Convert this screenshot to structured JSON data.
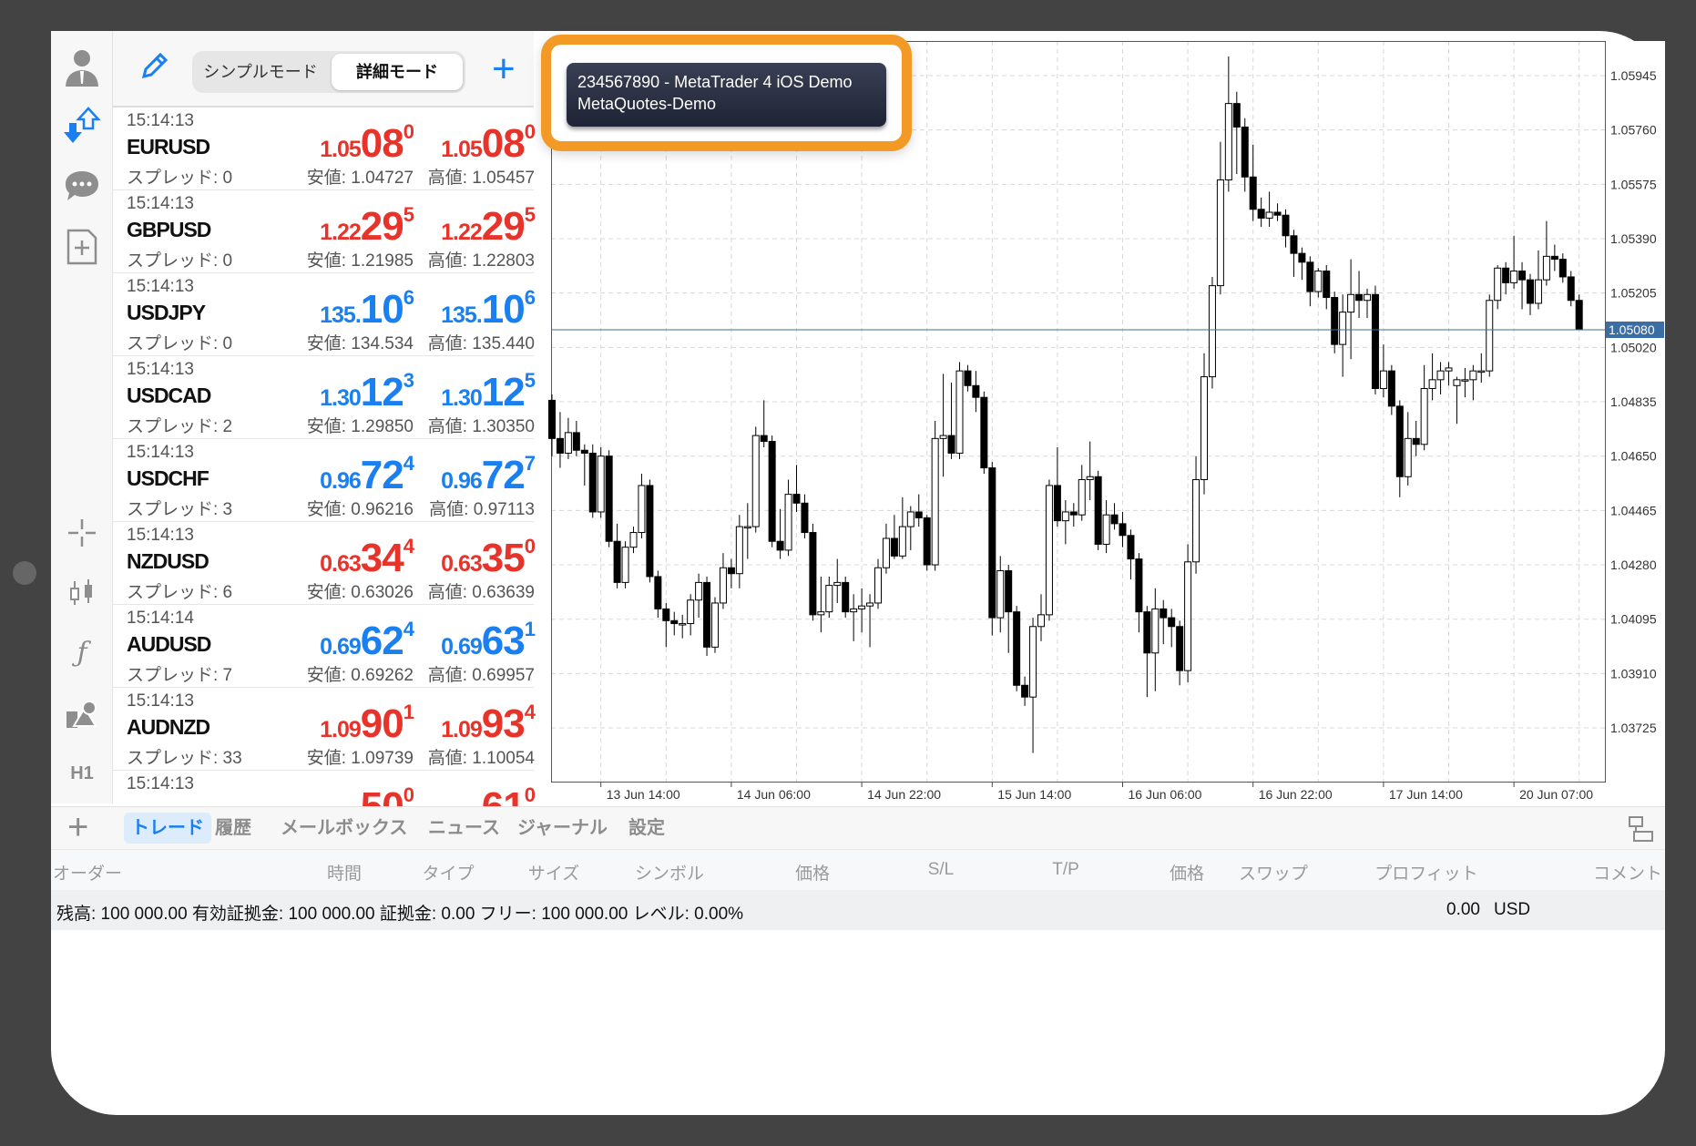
{
  "header": {
    "simple_mode": "シンプルモード",
    "detail_mode": "詳細モード",
    "active_mode": "詳細モード"
  },
  "toolbar": {
    "icons": [
      "person-icon",
      "trade-arrows-icon",
      "chat-icon",
      "new-document-icon",
      "crosshair-icon",
      "candlestick-icon",
      "function-icon",
      "objects-icon"
    ],
    "timeframe": "H1"
  },
  "colors": {
    "bid_down": "#e8332a",
    "bid_up": "#1a7ff0",
    "accent": "#1a7ff0",
    "highlight": "#f29a25",
    "price_line": "#3b6ea5"
  },
  "quotes": [
    {
      "time": "15:14:13",
      "symbol": "EURUSD",
      "spread": "スプレッド: 0",
      "dir": "red",
      "bid": {
        "small": "1.05",
        "big": "08",
        "sup": "0"
      },
      "ask": {
        "small": "1.05",
        "big": "08",
        "sup": "0"
      },
      "low": "安値: 1.04727",
      "high": "高値: 1.05457"
    },
    {
      "time": "15:14:13",
      "symbol": "GBPUSD",
      "spread": "スプレッド: 0",
      "dir": "red",
      "bid": {
        "small": "1.22",
        "big": "29",
        "sup": "5"
      },
      "ask": {
        "small": "1.22",
        "big": "29",
        "sup": "5"
      },
      "low": "安値: 1.21985",
      "high": "高値: 1.22803"
    },
    {
      "time": "15:14:13",
      "symbol": "USDJPY",
      "spread": "スプレッド: 0",
      "dir": "blue",
      "bid": {
        "small": "135.",
        "big": "10",
        "sup": "6"
      },
      "ask": {
        "small": "135.",
        "big": "10",
        "sup": "6"
      },
      "low": "安値: 134.534",
      "high": "高値: 135.440"
    },
    {
      "time": "15:14:13",
      "symbol": "USDCAD",
      "spread": "スプレッド: 2",
      "dir": "blue",
      "bid": {
        "small": "1.30",
        "big": "12",
        "sup": "3"
      },
      "ask": {
        "small": "1.30",
        "big": "12",
        "sup": "5"
      },
      "low": "安値: 1.29850",
      "high": "高値: 1.30350"
    },
    {
      "time": "15:14:13",
      "symbol": "USDCHF",
      "spread": "スプレッド: 3",
      "dir": "blue",
      "bid": {
        "small": "0.96",
        "big": "72",
        "sup": "4"
      },
      "ask": {
        "small": "0.96",
        "big": "72",
        "sup": "7"
      },
      "low": "安値: 0.96216",
      "high": "高値: 0.97113"
    },
    {
      "time": "15:14:13",
      "symbol": "NZDUSD",
      "spread": "スプレッド: 6",
      "dir": "red",
      "bid": {
        "small": "0.63",
        "big": "34",
        "sup": "4"
      },
      "ask": {
        "small": "0.63",
        "big": "35",
        "sup": "0"
      },
      "low": "安値: 0.63026",
      "high": "高値: 0.63639"
    },
    {
      "time": "15:14:14",
      "symbol": "AUDUSD",
      "spread": "スプレッド: 7",
      "dir": "blue",
      "bid": {
        "small": "0.69",
        "big": "62",
        "sup": "4"
      },
      "ask": {
        "small": "0.69",
        "big": "63",
        "sup": "1"
      },
      "low": "安値: 0.69262",
      "high": "高値: 0.69957"
    },
    {
      "time": "15:14:13",
      "symbol": "AUDNZD",
      "spread": "スプレッド: 33",
      "dir": "red",
      "bid": {
        "small": "1.09",
        "big": "90",
        "sup": "1"
      },
      "ask": {
        "small": "1.09",
        "big": "93",
        "sup": "4"
      },
      "low": "安値: 1.09739",
      "high": "高値: 1.10054"
    },
    {
      "time": "15:14:13",
      "symbol": "",
      "spread": "",
      "dir": "red",
      "bid": {
        "small": "",
        "big": "50",
        "sup": "0"
      },
      "ask": {
        "small": "",
        "big": "61",
        "sup": "0"
      },
      "low": "",
      "high": ""
    }
  ],
  "account_tooltip": {
    "line1": "234567890 - MetaTrader 4 iOS Demo",
    "line2": "MetaQuotes-Demo"
  },
  "chart_data": {
    "type": "candlestick",
    "symbol_price_now": 1.0508,
    "current_price_label": "1.05080",
    "ylim": [
      1.0365,
      1.0605
    ],
    "y_ticks": [
      "1.05945",
      "1.05760",
      "1.05575",
      "1.05390",
      "1.05205",
      "1.05020",
      "1.04835",
      "1.04650",
      "1.04465",
      "1.04280",
      "1.04095",
      "1.03910",
      "1.03725"
    ],
    "x_ticks": [
      "13 Jun 14:00",
      "14 Jun 06:00",
      "14 Jun 22:00",
      "15 Jun 14:00",
      "16 Jun 06:00",
      "16 Jun 22:00",
      "17 Jun 14:00",
      "20 Jun 07:00"
    ],
    "grid": true,
    "ohlc": [
      [
        1.0484,
        1.0486,
        1.0465,
        1.0471
      ],
      [
        1.0471,
        1.048,
        1.0461,
        1.0466
      ],
      [
        1.0466,
        1.0478,
        1.0464,
        1.0473
      ],
      [
        1.0473,
        1.0477,
        1.0465,
        1.0467
      ],
      [
        1.0467,
        1.0469,
        1.0455,
        1.0466
      ],
      [
        1.0466,
        1.0469,
        1.0444,
        1.0446
      ],
      [
        1.0446,
        1.0468,
        1.0444,
        1.0465
      ],
      [
        1.0465,
        1.0467,
        1.0434,
        1.0436
      ],
      [
        1.0436,
        1.0442,
        1.042,
        1.0422
      ],
      [
        1.0422,
        1.0436,
        1.042,
        1.0434
      ],
      [
        1.0434,
        1.0441,
        1.0432,
        1.0439
      ],
      [
        1.0439,
        1.0459,
        1.0437,
        1.0455
      ],
      [
        1.0455,
        1.0457,
        1.0422,
        1.0424
      ],
      [
        1.0424,
        1.0426,
        1.041,
        1.0413
      ],
      [
        1.0413,
        1.0415,
        1.04,
        1.0409
      ],
      [
        1.0409,
        1.0412,
        1.0404,
        1.0408
      ],
      [
        1.0408,
        1.0411,
        1.0403,
        1.0408
      ],
      [
        1.0408,
        1.0418,
        1.0404,
        1.0416
      ],
      [
        1.0416,
        1.0425,
        1.041,
        1.0422
      ],
      [
        1.0422,
        1.0424,
        1.0397,
        1.04
      ],
      [
        1.04,
        1.0417,
        1.0398,
        1.0415
      ],
      [
        1.0415,
        1.0432,
        1.0413,
        1.0427
      ],
      [
        1.0427,
        1.043,
        1.042,
        1.0425
      ],
      [
        1.0425,
        1.0445,
        1.042,
        1.0441
      ],
      [
        1.0441,
        1.0449,
        1.043,
        1.0441
      ],
      [
        1.0441,
        1.0475,
        1.0439,
        1.0472
      ],
      [
        1.0472,
        1.0484,
        1.0468,
        1.047
      ],
      [
        1.047,
        1.0472,
        1.0434,
        1.0436
      ],
      [
        1.0436,
        1.0447,
        1.043,
        1.0433
      ],
      [
        1.0433,
        1.0457,
        1.0431,
        1.0452
      ],
      [
        1.0452,
        1.0462,
        1.0446,
        1.0449
      ],
      [
        1.0449,
        1.0452,
        1.0437,
        1.0439
      ],
      [
        1.0439,
        1.0442,
        1.0409,
        1.0411
      ],
      [
        1.0411,
        1.0424,
        1.0405,
        1.0412
      ],
      [
        1.0412,
        1.0424,
        1.041,
        1.0421
      ],
      [
        1.0421,
        1.043,
        1.0415,
        1.0422
      ],
      [
        1.0422,
        1.0424,
        1.041,
        1.0412
      ],
      [
        1.0412,
        1.0418,
        1.0402,
        1.0413
      ],
      [
        1.0413,
        1.042,
        1.0405,
        1.0414
      ],
      [
        1.0414,
        1.0418,
        1.04,
        1.0415
      ],
      [
        1.0415,
        1.043,
        1.0413,
        1.0427
      ],
      [
        1.0427,
        1.0442,
        1.0425,
        1.0437
      ],
      [
        1.0437,
        1.0445,
        1.043,
        1.0431
      ],
      [
        1.0431,
        1.0451,
        1.043,
        1.0441
      ],
      [
        1.0441,
        1.0448,
        1.0433,
        1.0446
      ],
      [
        1.0446,
        1.0452,
        1.0441,
        1.0444
      ],
      [
        1.0444,
        1.0445,
        1.0426,
        1.0428
      ],
      [
        1.0428,
        1.0477,
        1.0426,
        1.0471
      ],
      [
        1.0471,
        1.0493,
        1.0458,
        1.0472
      ],
      [
        1.0472,
        1.049,
        1.0464,
        1.0466
      ],
      [
        1.0466,
        1.0497,
        1.0464,
        1.0494
      ],
      [
        1.0494,
        1.0496,
        1.0487,
        1.0489
      ],
      [
        1.0489,
        1.0494,
        1.048,
        1.0485
      ],
      [
        1.0485,
        1.0487,
        1.0459,
        1.0461
      ],
      [
        1.0461,
        1.0463,
        1.0404,
        1.041
      ],
      [
        1.041,
        1.0431,
        1.0405,
        1.0426
      ],
      [
        1.0426,
        1.0428,
        1.0398,
        1.0412
      ],
      [
        1.0412,
        1.0414,
        1.0385,
        1.0387
      ],
      [
        1.0387,
        1.039,
        1.038,
        1.0383
      ],
      [
        1.0383,
        1.041,
        1.0364,
        1.0407
      ],
      [
        1.0407,
        1.0418,
        1.0402,
        1.0411
      ],
      [
        1.0411,
        1.0457,
        1.0409,
        1.0455
      ],
      [
        1.0455,
        1.0468,
        1.0441,
        1.0443
      ],
      [
        1.0443,
        1.045,
        1.0435,
        1.0446
      ],
      [
        1.0446,
        1.0449,
        1.0441,
        1.0445
      ],
      [
        1.0445,
        1.0462,
        1.0443,
        1.0457
      ],
      [
        1.0457,
        1.047,
        1.045,
        1.0458
      ],
      [
        1.0458,
        1.046,
        1.0433,
        1.0435
      ],
      [
        1.0435,
        1.045,
        1.0432,
        1.0445
      ],
      [
        1.0445,
        1.0449,
        1.044,
        1.0442
      ],
      [
        1.0442,
        1.0446,
        1.0434,
        1.0438
      ],
      [
        1.0438,
        1.044,
        1.0423,
        1.043
      ],
      [
        1.043,
        1.0432,
        1.0405,
        1.0412
      ],
      [
        1.0412,
        1.0414,
        1.0383,
        1.0398
      ],
      [
        1.0398,
        1.042,
        1.0385,
        1.0413
      ],
      [
        1.0413,
        1.0416,
        1.0401,
        1.041
      ],
      [
        1.041,
        1.0413,
        1.04,
        1.0407
      ],
      [
        1.0407,
        1.0409,
        1.0387,
        1.0392
      ],
      [
        1.0392,
        1.0435,
        1.0388,
        1.0429
      ],
      [
        1.0429,
        1.0465,
        1.0425,
        1.0457
      ],
      [
        1.0457,
        1.05,
        1.0452,
        1.0492
      ],
      [
        1.0492,
        1.0526,
        1.0488,
        1.0523
      ],
      [
        1.0523,
        1.0572,
        1.052,
        1.0559
      ],
      [
        1.0559,
        1.0601,
        1.0555,
        1.0585
      ],
      [
        1.0585,
        1.0589,
        1.0561,
        1.0577
      ],
      [
        1.0577,
        1.058,
        1.0555,
        1.056
      ],
      [
        1.056,
        1.0571,
        1.0545,
        1.0549
      ],
      [
        1.0549,
        1.0553,
        1.0543,
        1.0546
      ],
      [
        1.0546,
        1.0555,
        1.0543,
        1.0548
      ],
      [
        1.0548,
        1.0551,
        1.0545,
        1.0547
      ],
      [
        1.0547,
        1.0549,
        1.0536,
        1.054
      ],
      [
        1.054,
        1.0542,
        1.0526,
        1.0534
      ],
      [
        1.0534,
        1.0536,
        1.0525,
        1.0531
      ],
      [
        1.0531,
        1.0533,
        1.0516,
        1.0521
      ],
      [
        1.0521,
        1.0529,
        1.0519,
        1.0528
      ],
      [
        1.0528,
        1.053,
        1.0515,
        1.0519
      ],
      [
        1.0519,
        1.0521,
        1.05,
        1.0503
      ],
      [
        1.0503,
        1.052,
        1.0492,
        1.0514
      ],
      [
        1.0514,
        1.0532,
        1.0498,
        1.052
      ],
      [
        1.052,
        1.0528,
        1.0512,
        1.0518
      ],
      [
        1.0518,
        1.0522,
        1.0512,
        1.052
      ],
      [
        1.052,
        1.0523,
        1.0486,
        1.0488
      ],
      [
        1.0488,
        1.0503,
        1.0485,
        1.0494
      ],
      [
        1.0494,
        1.0496,
        1.0479,
        1.0482
      ],
      [
        1.0482,
        1.0484,
        1.0451,
        1.0458
      ],
      [
        1.0458,
        1.048,
        1.0455,
        1.0471
      ],
      [
        1.0471,
        1.0477,
        1.0465,
        1.0469
      ],
      [
        1.0469,
        1.0496,
        1.0467,
        1.0488
      ],
      [
        1.0488,
        1.05,
        1.0484,
        1.0491
      ],
      [
        1.0491,
        1.0497,
        1.0486,
        1.0494
      ],
      [
        1.0494,
        1.0497,
        1.0489,
        1.0495
      ],
      [
        1.0489,
        1.0492,
        1.0476,
        1.0491
      ],
      [
        1.0491,
        1.0495,
        1.0485,
        1.0491
      ],
      [
        1.0491,
        1.0496,
        1.0484,
        1.0494
      ],
      [
        1.0494,
        1.05,
        1.049,
        1.0494
      ],
      [
        1.0494,
        1.052,
        1.0492,
        1.0518
      ],
      [
        1.0518,
        1.053,
        1.0515,
        1.0529
      ],
      [
        1.0529,
        1.0531,
        1.052,
        1.0524
      ],
      [
        1.0524,
        1.054,
        1.0522,
        1.0528
      ],
      [
        1.0528,
        1.0531,
        1.0515,
        1.0525
      ],
      [
        1.0525,
        1.0527,
        1.0513,
        1.0517
      ],
      [
        1.0517,
        1.0535,
        1.0515,
        1.0525
      ],
      [
        1.0525,
        1.0545,
        1.0523,
        1.0533
      ],
      [
        1.0533,
        1.0537,
        1.0528,
        1.0532
      ],
      [
        1.0532,
        1.0534,
        1.0524,
        1.0526
      ],
      [
        1.0526,
        1.0528,
        1.0516,
        1.0518
      ],
      [
        1.0518,
        1.052,
        1.0508,
        1.0508
      ]
    ]
  },
  "bottom": {
    "tabs": [
      "トレード",
      "履歴",
      "メールボックス",
      "ニュース",
      "ジャーナル",
      "設定"
    ],
    "active_tab": "トレード",
    "columns": [
      "オーダー",
      "時間",
      "タイプ",
      "サイズ",
      "シンボル",
      "価格",
      "S/L",
      "T/P",
      "価格",
      "スワップ",
      "プロフィット",
      "コメント"
    ],
    "balance_text": "残高: 100 000.00 有効証拠金: 100 000.00 証拠金: 0.00 フリー: 100 000.00 レベル: 0.00%",
    "profit": "0.00",
    "currency": "USD"
  }
}
